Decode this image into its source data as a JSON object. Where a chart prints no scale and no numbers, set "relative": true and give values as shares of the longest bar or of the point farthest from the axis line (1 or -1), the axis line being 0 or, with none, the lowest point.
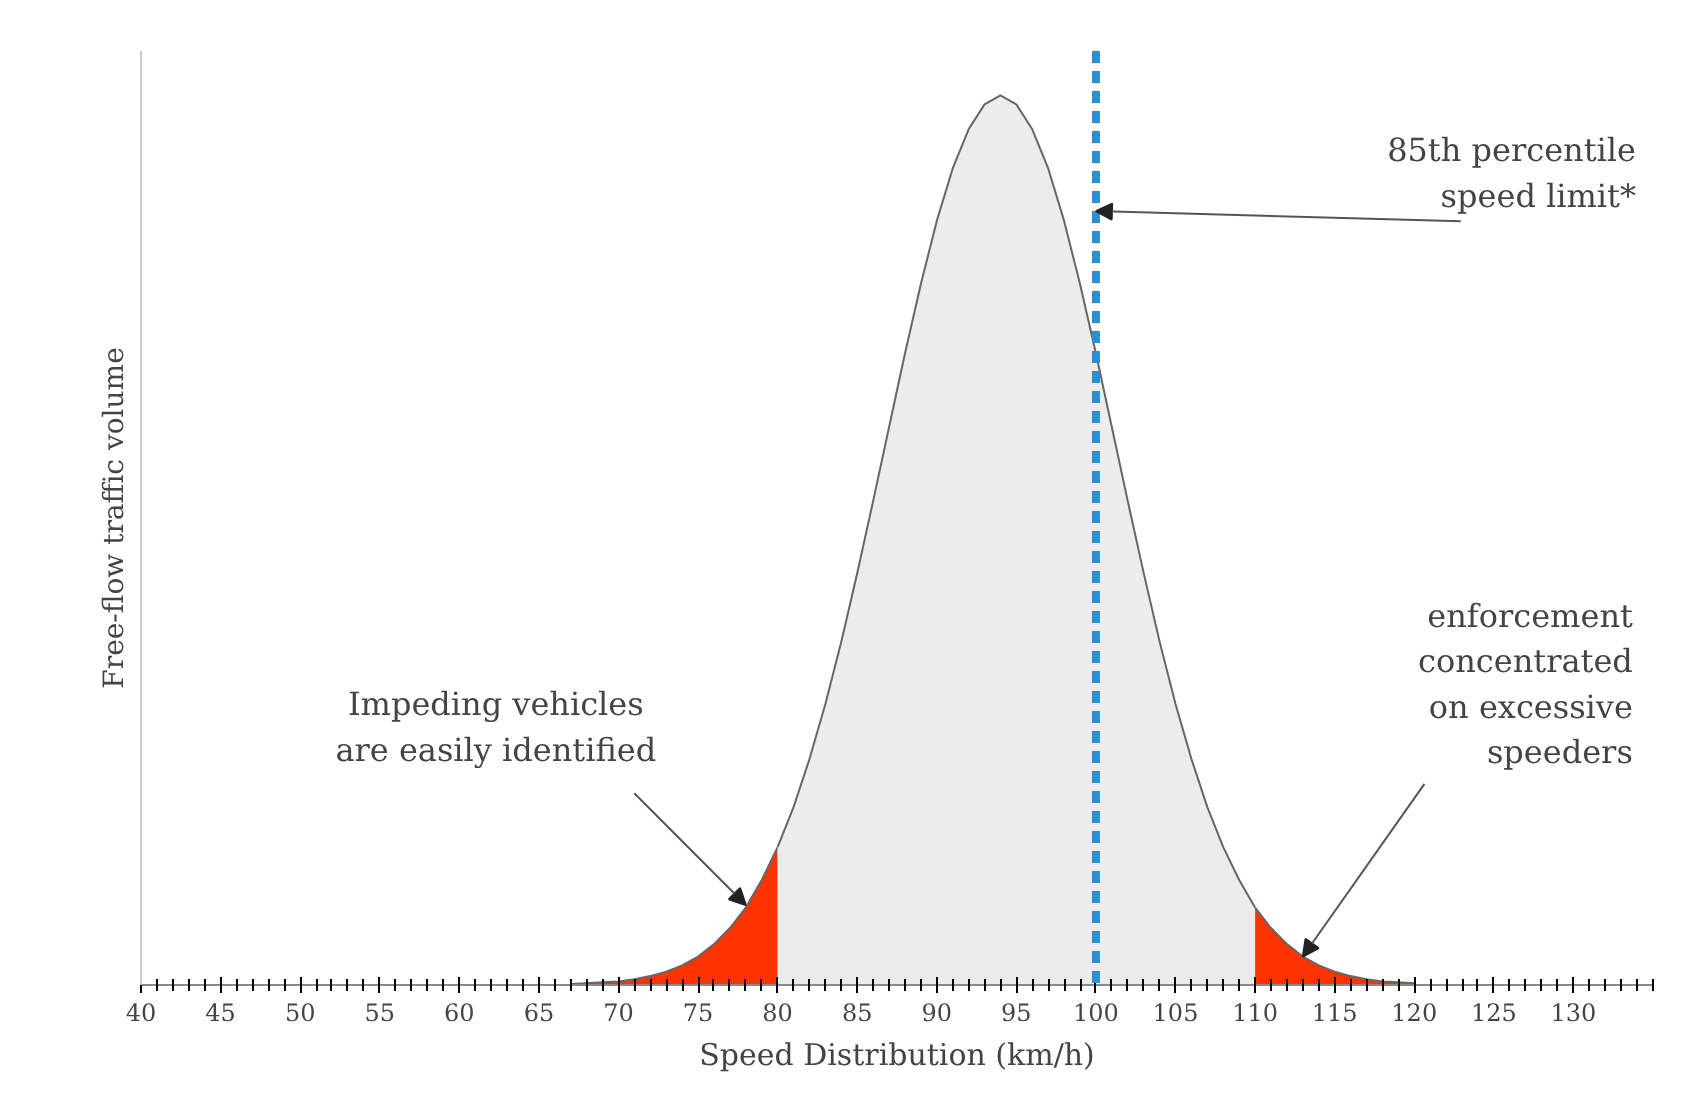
{
  "chart_data": {
    "type": "area",
    "xlabel": "Speed Distribution (km/h)",
    "ylabel": "Free-flow traffic volume",
    "relative": true,
    "xlim": [
      40,
      135
    ],
    "xticks": [
      40,
      45,
      50,
      55,
      60,
      65,
      70,
      75,
      80,
      85,
      90,
      95,
      100,
      105,
      110,
      115,
      120,
      125,
      130
    ],
    "series": [
      {
        "color": "#ff3300",
        "x": [
          67,
          68,
          69,
          70,
          71,
          72,
          73,
          74,
          75,
          76,
          77,
          78,
          79,
          80
        ],
        "values": [
          0.001,
          0.002,
          0.003,
          0.004,
          0.0065,
          0.01,
          0.015,
          0.022,
          0.032,
          0.046,
          0.064,
          0.087,
          0.118,
          0.155
        ]
      },
      {
        "color": "#ececec",
        "x": [
          80,
          81,
          82,
          83,
          84,
          85,
          86,
          87,
          88,
          89,
          90,
          91,
          92,
          93,
          94,
          95,
          96,
          97,
          98,
          99,
          100,
          101,
          102,
          103,
          104,
          105,
          106,
          107,
          108,
          109,
          110
        ],
        "values": [
          0.155,
          0.2,
          0.254,
          0.316,
          0.386,
          0.463,
          0.544,
          0.627,
          0.71,
          0.788,
          0.859,
          0.918,
          0.962,
          0.99,
          1,
          0.99,
          0.962,
          0.918,
          0.859,
          0.788,
          0.71,
          0.627,
          0.544,
          0.463,
          0.386,
          0.316,
          0.254,
          0.2,
          0.155,
          0.118,
          0.087
        ]
      },
      {
        "color": "#ff3300",
        "x": [
          110,
          111,
          112,
          113,
          114,
          115,
          116,
          117,
          118,
          119,
          120
        ],
        "values": [
          0.087,
          0.064,
          0.046,
          0.032,
          0.022,
          0.015,
          0.01,
          0.0065,
          0.004,
          0.003,
          0.002
        ]
      }
    ],
    "ref_lines": [
      {
        "axis": "x",
        "value": 100,
        "color": "#2b8fd0",
        "line_style": "dashed"
      }
    ],
    "annotations": [
      {
        "text": "85th percentile\nspeed limit*",
        "x": 100,
        "y": 0.87
      },
      {
        "text": "Impeding vehicles\nare easily identified",
        "x": 78,
        "y": 0.09
      },
      {
        "text": "enforcement\nconcentrated\non excessive\nspeeders",
        "x": 113,
        "y": 0.032
      }
    ],
    "grid": false
  }
}
